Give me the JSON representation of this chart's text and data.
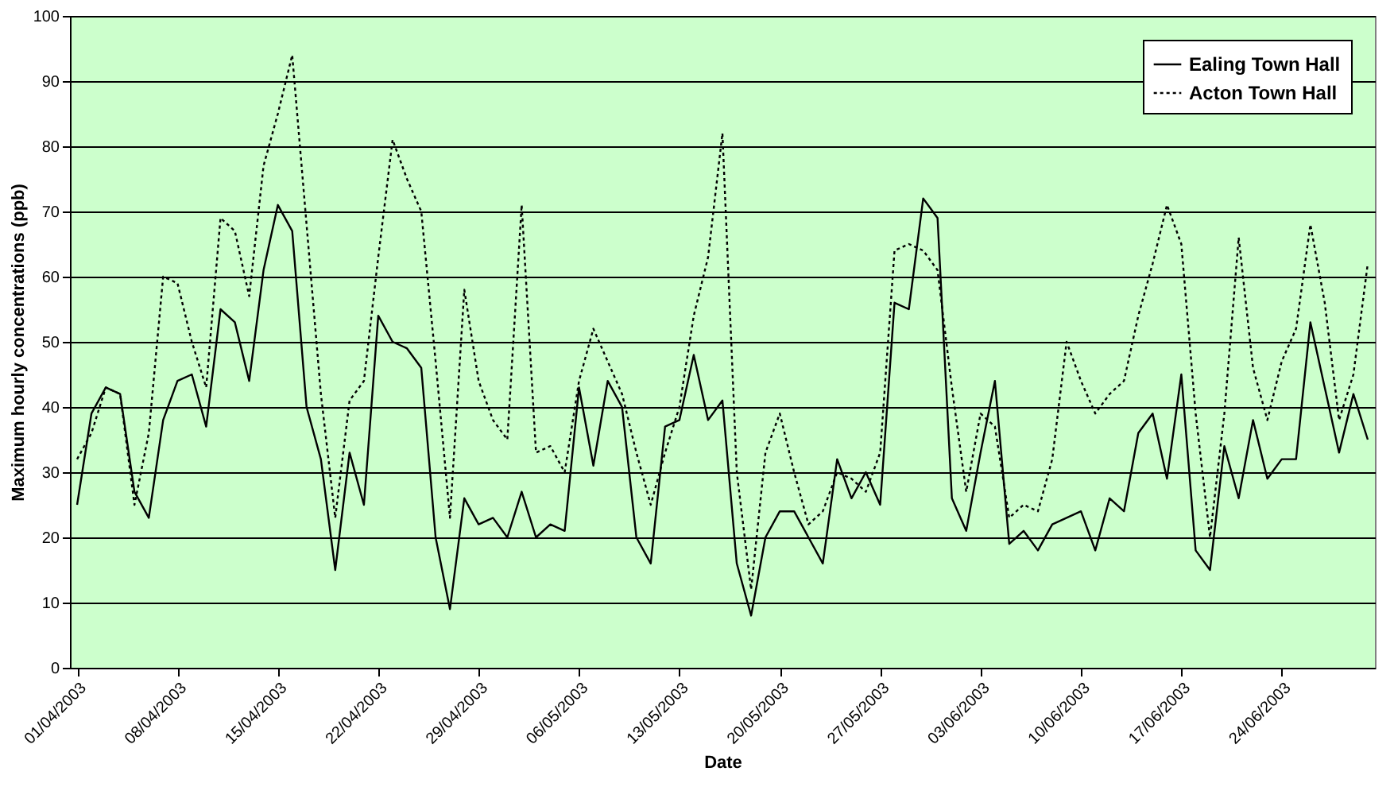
{
  "chart_data": {
    "type": "line",
    "xlabel": "Date",
    "ylabel": "Maximum hourly concentrations (ppb)",
    "x": [
      "2003-04-01",
      "2003-04-02",
      "2003-04-03",
      "2003-04-04",
      "2003-04-05",
      "2003-04-06",
      "2003-04-07",
      "2003-04-08",
      "2003-04-09",
      "2003-04-10",
      "2003-04-11",
      "2003-04-12",
      "2003-04-13",
      "2003-04-14",
      "2003-04-15",
      "2003-04-16",
      "2003-04-17",
      "2003-04-18",
      "2003-04-19",
      "2003-04-20",
      "2003-04-21",
      "2003-04-22",
      "2003-04-23",
      "2003-04-24",
      "2003-04-25",
      "2003-04-26",
      "2003-04-27",
      "2003-04-28",
      "2003-04-29",
      "2003-04-30",
      "2003-05-01",
      "2003-05-02",
      "2003-05-03",
      "2003-05-04",
      "2003-05-05",
      "2003-05-06",
      "2003-05-07",
      "2003-05-08",
      "2003-05-09",
      "2003-05-10",
      "2003-05-11",
      "2003-05-12",
      "2003-05-13",
      "2003-05-14",
      "2003-05-15",
      "2003-05-16",
      "2003-05-17",
      "2003-05-18",
      "2003-05-19",
      "2003-05-20",
      "2003-05-21",
      "2003-05-22",
      "2003-05-23",
      "2003-05-24",
      "2003-05-25",
      "2003-05-26",
      "2003-05-27",
      "2003-05-28",
      "2003-05-29",
      "2003-05-30",
      "2003-05-31",
      "2003-06-01",
      "2003-06-02",
      "2003-06-03",
      "2003-06-04",
      "2003-06-05",
      "2003-06-06",
      "2003-06-07",
      "2003-06-08",
      "2003-06-09",
      "2003-06-10",
      "2003-06-11",
      "2003-06-12",
      "2003-06-13",
      "2003-06-14",
      "2003-06-15",
      "2003-06-16",
      "2003-06-17",
      "2003-06-18",
      "2003-06-19",
      "2003-06-20",
      "2003-06-21",
      "2003-06-22",
      "2003-06-23",
      "2003-06-24",
      "2003-06-25",
      "2003-06-26",
      "2003-06-27",
      "2003-06-28",
      "2003-06-29",
      "2003-06-30"
    ],
    "series": [
      {
        "name": "Ealing Town Hall",
        "color": "#000000",
        "line_style": "solid",
        "values": [
          25,
          39,
          43,
          42,
          27,
          23,
          38,
          44,
          45,
          37,
          55,
          53,
          44,
          61,
          71,
          67,
          40,
          32,
          15,
          33,
          25,
          54,
          50,
          49,
          46,
          20,
          9,
          26,
          22,
          23,
          20,
          27,
          20,
          22,
          21,
          43,
          31,
          44,
          40,
          20,
          16,
          37,
          38,
          48,
          38,
          41,
          16,
          8,
          20,
          24,
          24,
          20,
          16,
          32,
          26,
          30,
          25,
          56,
          55,
          72,
          69,
          26,
          21,
          33,
          44,
          19,
          21,
          18,
          22,
          23,
          24,
          18,
          26,
          24,
          36,
          39,
          29,
          45,
          18,
          15,
          34,
          26,
          38,
          29,
          32,
          32,
          53,
          43,
          33,
          42,
          35
        ]
      },
      {
        "name": "Acton Town Hall",
        "color": "#000000",
        "line_style": "dotted",
        "values": [
          32,
          36,
          43,
          42,
          25,
          36,
          60,
          59,
          50,
          43,
          69,
          67,
          57,
          77,
          85,
          94,
          68,
          42,
          23,
          41,
          44,
          63,
          81,
          75,
          70,
          47,
          23,
          58,
          44,
          38,
          35,
          71,
          33,
          34,
          30,
          44,
          52,
          47,
          42,
          33,
          25,
          33,
          40,
          54,
          63,
          82,
          30,
          12,
          33,
          39,
          30,
          22,
          24,
          30,
          29,
          27,
          33,
          64,
          65,
          64,
          61,
          43,
          27,
          39,
          37,
          23,
          25,
          24,
          32,
          50,
          44,
          39,
          42,
          44,
          54,
          62,
          71,
          65,
          39,
          20,
          39,
          66,
          46,
          38,
          47,
          52,
          68,
          56,
          38,
          45,
          62
        ]
      }
    ],
    "xlim": [
      "2003-03-31T12:00",
      "2003-06-30T12:00"
    ],
    "xticks": [
      {
        "value": "2003-04-01",
        "label": "01/04/2003"
      },
      {
        "value": "2003-04-08",
        "label": "08/04/2003"
      },
      {
        "value": "2003-04-15",
        "label": "15/04/2003"
      },
      {
        "value": "2003-04-22",
        "label": "22/04/2003"
      },
      {
        "value": "2003-04-29",
        "label": "29/04/2003"
      },
      {
        "value": "2003-05-06",
        "label": "06/05/2003"
      },
      {
        "value": "2003-05-13",
        "label": "13/05/2003"
      },
      {
        "value": "2003-05-20",
        "label": "20/05/2003"
      },
      {
        "value": "2003-05-27",
        "label": "27/05/2003"
      },
      {
        "value": "2003-06-03",
        "label": "03/06/2003"
      },
      {
        "value": "2003-06-10",
        "label": "10/06/2003"
      },
      {
        "value": "2003-06-17",
        "label": "17/06/2003"
      },
      {
        "value": "2003-06-24",
        "label": "24/06/2003"
      }
    ],
    "ylim": [
      0,
      100
    ],
    "yticks": [
      0,
      10,
      20,
      30,
      40,
      50,
      60,
      70,
      80,
      90,
      100
    ],
    "grid": "y",
    "legend": "top right",
    "marker": "none"
  }
}
